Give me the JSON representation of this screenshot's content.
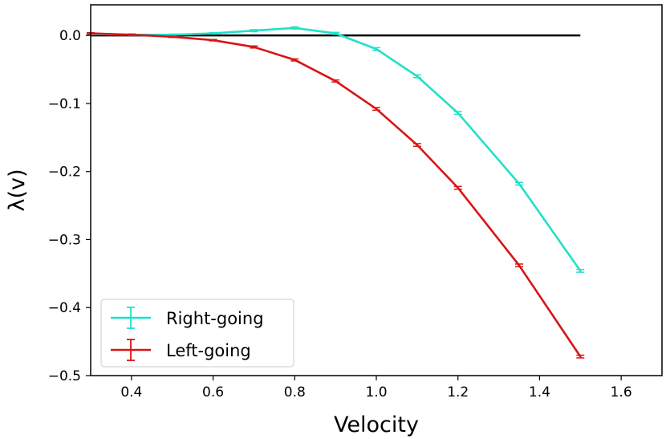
{
  "chart_data": {
    "type": "line",
    "title": "",
    "xlabel": "Velocity",
    "ylabel": "λ(v)",
    "xlim": [
      0.3,
      1.7
    ],
    "ylim": [
      -0.5,
      0.045
    ],
    "xticks": [
      0.4,
      0.6,
      0.8,
      1.0,
      1.2,
      1.4,
      1.6
    ],
    "xtick_labels": [
      "0.4",
      "0.6",
      "0.8",
      "1.0",
      "1.2",
      "1.4",
      "1.6"
    ],
    "yticks": [
      0.0,
      -0.1,
      -0.2,
      -0.3,
      -0.4,
      -0.5
    ],
    "ytick_labels": [
      "0.0",
      "−0.1",
      "−0.2",
      "−0.3",
      "−0.4",
      "−0.5"
    ],
    "legend_position": "lower-left",
    "reference_line": {
      "y": 0.0,
      "x_start": 0.3,
      "x_end": 1.5,
      "color": "#000000"
    },
    "series": [
      {
        "name": "Right-going",
        "color": "#21e0c9",
        "x": [
          0.3,
          0.4,
          0.5,
          0.6,
          0.7,
          0.8,
          0.9,
          1.0,
          1.1,
          1.2,
          1.35,
          1.5
        ],
        "y": [
          0.002,
          0.001,
          0.001,
          0.003,
          0.007,
          0.011,
          0.003,
          -0.02,
          -0.06,
          -0.114,
          -0.218,
          -0.346
        ],
        "err": [
          0.001,
          0.001,
          0.001,
          0.001,
          0.0015,
          0.0015,
          0.0015,
          0.002,
          0.002,
          0.002,
          0.002,
          0.002
        ]
      },
      {
        "name": "Left-going",
        "color": "#d81515",
        "x": [
          0.3,
          0.4,
          0.5,
          0.6,
          0.7,
          0.8,
          0.9,
          1.0,
          1.1,
          1.2,
          1.35,
          1.5
        ],
        "y": [
          0.003,
          0.001,
          -0.002,
          -0.007,
          -0.017,
          -0.036,
          -0.067,
          -0.108,
          -0.161,
          -0.224,
          -0.338,
          -0.472
        ],
        "err": [
          0.001,
          0.001,
          0.001,
          0.001,
          0.0015,
          0.0015,
          0.0015,
          0.002,
          0.002,
          0.002,
          0.002,
          0.002
        ]
      }
    ]
  }
}
